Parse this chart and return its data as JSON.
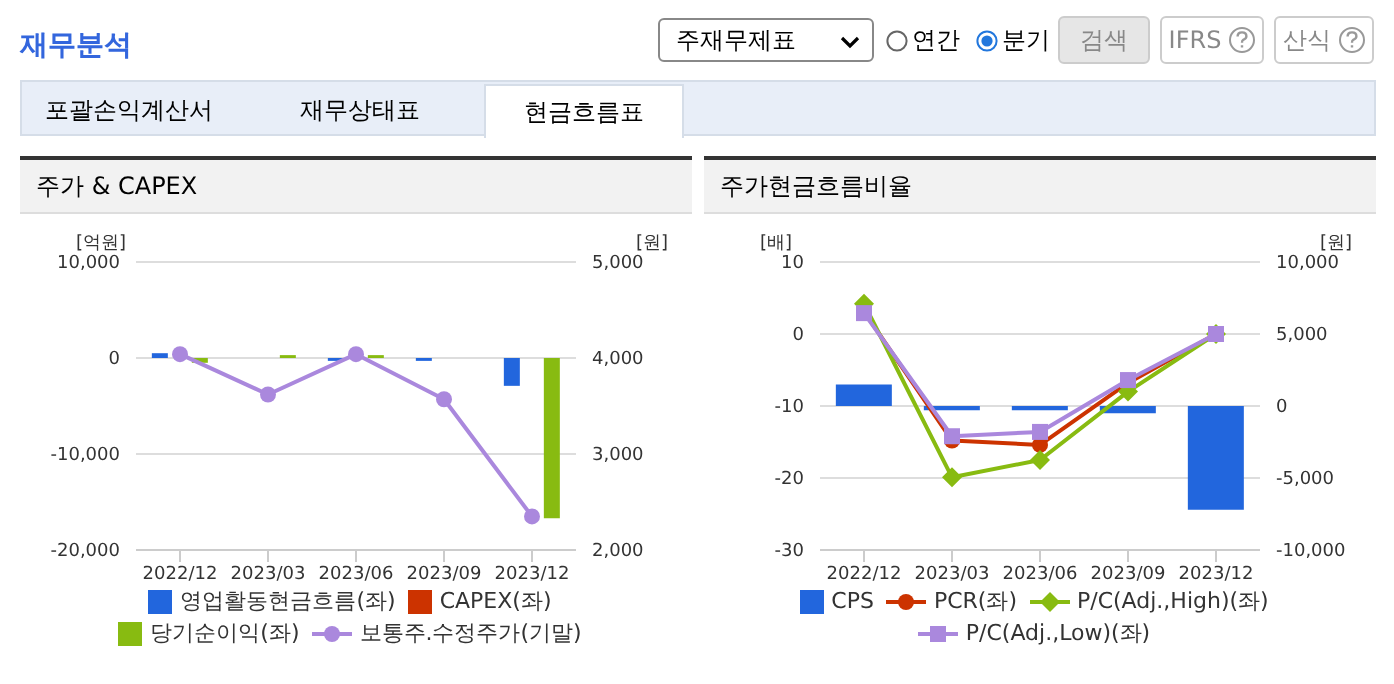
{
  "chart_data": [
    {
      "type": "other",
      "annotations": [
        "재무분석",
        "주재무제표",
        "연간",
        "분기",
        "검색",
        "IFRS",
        "산식",
        "포괄손익계산서",
        "재무상태표",
        "현금흐름표"
      ]
    },
    {
      "type": "bar",
      "title": "주가 & CAPEX",
      "ylabel": "[억원]",
      "y2label": "[원]",
      "categories": [
        "2022/12",
        "2023/03",
        "2023/06",
        "2023/09",
        "2023/12"
      ],
      "series": [
        {
          "name": "영업활동현금흐름(좌)",
          "color": "#2266dd",
          "values": [
            500,
            null,
            -300,
            -300,
            -2900
          ]
        },
        {
          "name": "CAPEX(좌)",
          "color": "#cc3300",
          "values": [
            null,
            null,
            null,
            null,
            null
          ]
        },
        {
          "name": "당기순이익(좌)",
          "color": "#88bb11",
          "values": [
            -500,
            300,
            300,
            null,
            -16700
          ]
        },
        {
          "name": "보통주.수정주가(기말)",
          "type": "line",
          "axis": "y2",
          "marker": "circle",
          "color": "#aa88dd",
          "values": [
            4040,
            3620,
            4040,
            3570,
            2350
          ]
        }
      ],
      "ylim": [
        -20000,
        10000
      ],
      "yticks": [
        {
          "value": -20000,
          "label": "-20,000"
        },
        {
          "value": -10000,
          "label": "-10,000"
        },
        0,
        {
          "value": 10000,
          "label": "10,000"
        }
      ],
      "y2lim": [
        2000,
        5000
      ],
      "y2ticks": [
        {
          "value": 2000,
          "label": "2,000"
        },
        {
          "value": 3000,
          "label": "3,000"
        },
        {
          "value": 4000,
          "label": "4,000"
        },
        {
          "value": 5000,
          "label": "5,000"
        }
      ],
      "grid": "y",
      "legend": "bottom"
    },
    {
      "type": "bar",
      "title": "주가현금흐름비율",
      "ylabel": "[배]",
      "y2label": "[원]",
      "categories": [
        "2022/12",
        "2023/03",
        "2023/06",
        "2023/09",
        "2023/12"
      ],
      "series": [
        {
          "name": "CPS",
          "axis": "y2",
          "color": "#2266dd",
          "values": [
            1500,
            -300,
            -300,
            -500,
            -7200
          ]
        },
        {
          "name": "PCR(좌)",
          "type": "line",
          "marker": "circle",
          "color": "#cc3300",
          "values": [
            3.1,
            -14.8,
            -15.4,
            -6.8,
            0
          ]
        },
        {
          "name": "P/C(Adj.,High)(좌)",
          "type": "line",
          "marker": "diamond",
          "color": "#88bb11",
          "values": [
            4.2,
            -19.9,
            -17.5,
            -8,
            0
          ]
        },
        {
          "name": "P/C(Adj.,Low)(좌)",
          "type": "line",
          "marker": "square",
          "color": "#aa88dd",
          "values": [
            2.9,
            -14.2,
            -13.6,
            -6.4,
            0
          ]
        }
      ],
      "ylim": [
        -30,
        10
      ],
      "yticks": [
        -30,
        -20,
        -10,
        0,
        10
      ],
      "y2lim": [
        -10000,
        10000
      ],
      "y2ticks": [
        {
          "value": -10000,
          "label": "-10,000"
        },
        {
          "value": -5000,
          "label": "-5,000"
        },
        0,
        {
          "value": 5000,
          "label": "5,000"
        },
        {
          "value": 10000,
          "label": "10,000"
        }
      ],
      "grid": "y",
      "legend": "bottom"
    }
  ]
}
